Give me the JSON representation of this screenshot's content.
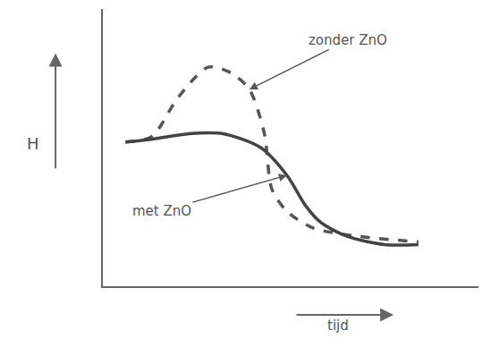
{
  "chart_data": {
    "type": "line",
    "x_label": "tijd",
    "y_label": "H",
    "xlim": [
      0,
      10
    ],
    "ylim": [
      0,
      10
    ],
    "xticks": [],
    "yticks": [],
    "tick_labels": false,
    "grid": false,
    "series": [
      {
        "name": "zonder ZnO",
        "color": "#555555",
        "line_style": "dashed",
        "x": [
          0.6,
          1.3,
          2.0,
          2.8,
          3.4,
          3.9,
          4.3,
          4.5,
          4.9,
          5.6,
          6.8,
          8.4
        ],
        "values": [
          5.2,
          5.4,
          6.8,
          7.9,
          7.7,
          7.1,
          5.5,
          3.5,
          2.7,
          2.1,
          1.8,
          1.6
        ]
      },
      {
        "name": "met ZnO",
        "color": "#444444",
        "line_style": "solid",
        "x": [
          0.6,
          1.3,
          2.3,
          3.2,
          4.2,
          4.9,
          5.4,
          5.8,
          6.5,
          7.5,
          8.4
        ],
        "values": [
          5.2,
          5.3,
          5.5,
          5.5,
          5.0,
          4.0,
          2.9,
          2.3,
          1.8,
          1.5,
          1.5
        ]
      }
    ]
  }
}
